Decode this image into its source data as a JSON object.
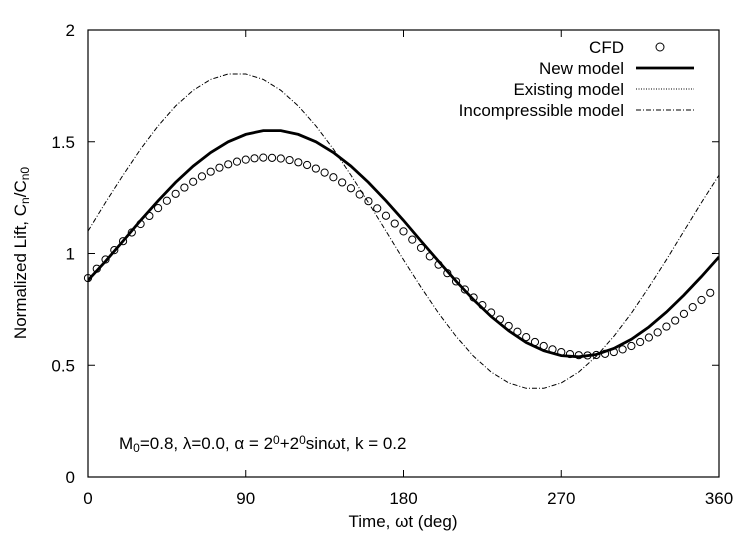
{
  "chart_data": {
    "type": "line",
    "xlabel": "Time, ωt (deg)",
    "ylabel_main": "Normalized Lift, C",
    "ylabel_sub1": "n",
    "ylabel_mid": "/C",
    "ylabel_sub2": "n0",
    "xlim": [
      0,
      360
    ],
    "ylim": [
      0,
      2
    ],
    "xticks": [
      0,
      90,
      180,
      270,
      360
    ],
    "yticks": [
      0,
      0.5,
      1,
      1.5,
      2
    ],
    "grid": false,
    "legend_position": "top-right",
    "annotation": {
      "p1": "M",
      "p1_sub": "0",
      "p2": "=0.8, λ=0.0, α = 2",
      "p2_sup": "0",
      "p3": "+2",
      "p3_sup": "0",
      "p4": "sinωt, k = 0.2"
    },
    "series": [
      {
        "name": "CFD",
        "style": "circles",
        "x": [
          0,
          5,
          10,
          15,
          20,
          25,
          30,
          35,
          40,
          45,
          50,
          55,
          60,
          65,
          70,
          75,
          80,
          85,
          90,
          95,
          100,
          105,
          110,
          115,
          120,
          125,
          130,
          135,
          140,
          145,
          150,
          155,
          160,
          165,
          170,
          175,
          180,
          185,
          190,
          195,
          200,
          205,
          210,
          215,
          220,
          225,
          230,
          235,
          240,
          245,
          250,
          255,
          260,
          265,
          270,
          275,
          280,
          285,
          290,
          295,
          300,
          305,
          310,
          315,
          320,
          325,
          330,
          335,
          340,
          345,
          350,
          355
        ],
        "y": [
          0.89,
          0.932,
          0.973,
          1.015,
          1.055,
          1.094,
          1.132,
          1.168,
          1.203,
          1.236,
          1.267,
          1.295,
          1.321,
          1.345,
          1.366,
          1.384,
          1.399,
          1.411,
          1.42,
          1.426,
          1.429,
          1.428,
          1.425,
          1.418,
          1.408,
          1.396,
          1.38,
          1.362,
          1.341,
          1.318,
          1.292,
          1.264,
          1.234,
          1.202,
          1.169,
          1.134,
          1.099,
          1.062,
          1.025,
          0.987,
          0.95,
          0.912,
          0.875,
          0.839,
          0.803,
          0.769,
          0.736,
          0.705,
          0.676,
          0.65,
          0.626,
          0.604,
          0.586,
          0.571,
          0.559,
          0.55,
          0.545,
          0.544,
          0.546,
          0.551,
          0.559,
          0.571,
          0.586,
          0.604,
          0.624,
          0.647,
          0.673,
          0.7,
          0.73,
          0.76,
          0.792,
          0.824
        ]
      },
      {
        "name": "New model",
        "style": "solid-thick",
        "x": [
          0,
          10,
          20,
          30,
          40,
          50,
          60,
          70,
          80,
          90,
          100,
          110,
          120,
          130,
          140,
          150,
          160,
          170,
          180,
          190,
          200,
          210,
          220,
          230,
          240,
          250,
          260,
          270,
          280,
          290,
          300,
          310,
          320,
          330,
          340,
          350,
          360
        ],
        "y": [
          0.88,
          0.965,
          1.056,
          1.148,
          1.236,
          1.318,
          1.391,
          1.452,
          1.5,
          1.533,
          1.55,
          1.55,
          1.533,
          1.5,
          1.452,
          1.391,
          1.318,
          1.236,
          1.148,
          1.056,
          0.965,
          0.876,
          0.793,
          0.718,
          0.654,
          0.602,
          0.565,
          0.543,
          0.538,
          0.548,
          0.575,
          0.616,
          0.671,
          0.738,
          0.814,
          0.897,
          0.985
        ]
      },
      {
        "name": "Existing model",
        "style": "dotted",
        "x": [],
        "y": []
      },
      {
        "name": "Incompressible model",
        "style": "dash-dot",
        "x": [
          0,
          10,
          20,
          30,
          40,
          50,
          60,
          70,
          80,
          90,
          100,
          110,
          120,
          130,
          140,
          150,
          160,
          170,
          180,
          190,
          200,
          210,
          220,
          230,
          240,
          250,
          260,
          270,
          280,
          290,
          300,
          310,
          320,
          330,
          340,
          350,
          360
        ],
        "y": [
          1.1,
          1.228,
          1.351,
          1.467,
          1.571,
          1.66,
          1.73,
          1.779,
          1.803,
          1.803,
          1.779,
          1.73,
          1.66,
          1.571,
          1.467,
          1.351,
          1.228,
          1.1,
          0.972,
          0.849,
          0.733,
          0.629,
          0.54,
          0.47,
          0.421,
          0.397,
          0.397,
          0.421,
          0.47,
          0.54,
          0.629,
          0.733,
          0.849,
          0.972,
          1.1,
          1.228,
          1.351
        ]
      }
    ]
  }
}
